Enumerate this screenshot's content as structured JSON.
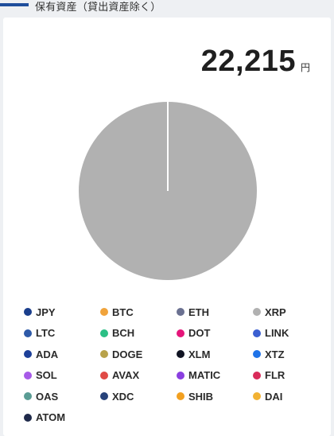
{
  "header": {
    "title": "保有資産（貸出資産除く）",
    "accent_color": "#1f4e9c"
  },
  "total": {
    "value": "22,215",
    "unit": "円"
  },
  "chart_data": {
    "type": "pie",
    "categories": [
      "JPY",
      "BTC",
      "ETH",
      "XRP",
      "LTC",
      "BCH",
      "DOT",
      "LINK",
      "ADA",
      "DOGE",
      "XLM",
      "XTZ",
      "SOL",
      "AVAX",
      "MATIC",
      "FLR",
      "OAS",
      "XDC",
      "SHIB",
      "DAI",
      "ATOM"
    ],
    "values": [
      0,
      0,
      0,
      100,
      0,
      0,
      0,
      0,
      0,
      0,
      0,
      0,
      0,
      0,
      0,
      0,
      0,
      0,
      0,
      0,
      0
    ],
    "colors": [
      "#1a3e8c",
      "#f0a33b",
      "#6b7191",
      "#b1b1b1",
      "#2e5aa8",
      "#2bbf85",
      "#e5157a",
      "#3b5fd1",
      "#1d4099",
      "#b8a24a",
      "#101322",
      "#1f73e8",
      "#a75ae8",
      "#e04a46",
      "#8a3fe0",
      "#d92b5a",
      "#5a9c94",
      "#27427a",
      "#f2a020",
      "#f2b233",
      "#1f2a4a"
    ],
    "legend_position": "bottom"
  }
}
